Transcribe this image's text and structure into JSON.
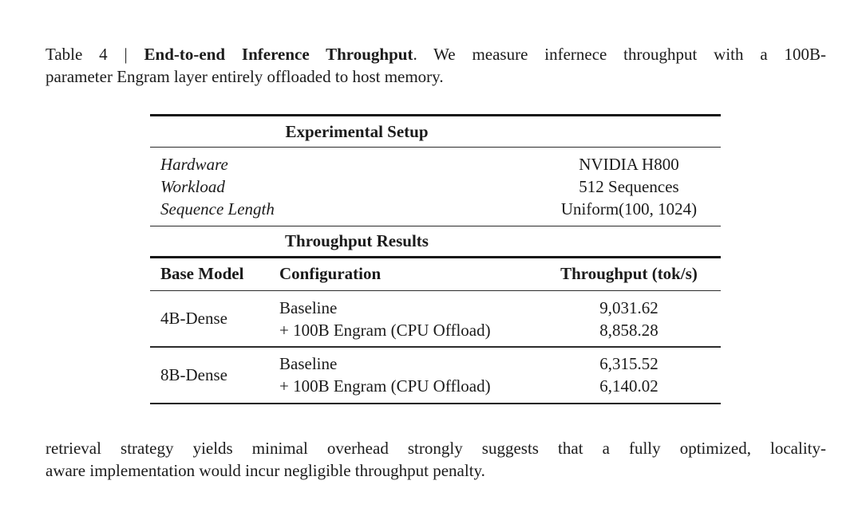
{
  "page": {
    "background": "#ffffff",
    "text_color": "#1b1b1b",
    "rule_color": "#1f1f1f"
  },
  "caption": {
    "label_prefix": "Table 4 | ",
    "bold_title": "End-to-end Inference Throughput",
    "line1_rest": ". We measure infernece throughput with a 100B-",
    "line2": "parameter Engram layer entirely offloaded to host memory."
  },
  "table": {
    "setup_section": {
      "title": "Experimental Setup",
      "rows": [
        {
          "label": "Hardware",
          "value": "NVIDIA H800"
        },
        {
          "label": "Workload",
          "value": "512 Sequences"
        },
        {
          "label": "Sequence Length",
          "value": "Uniform(100, 1024)"
        }
      ]
    },
    "results_section": {
      "title": "Throughput Results",
      "columns": {
        "col1": "Base Model",
        "col2": "Configuration",
        "col3": "Throughput (tok/s)"
      },
      "groups": [
        {
          "base_model": "4B-Dense",
          "rows": [
            {
              "configuration": "Baseline",
              "throughput": "9,031.62"
            },
            {
              "configuration": "+ 100B Engram (CPU Offload)",
              "throughput": "8,858.28"
            }
          ]
        },
        {
          "base_model": "8B-Dense",
          "rows": [
            {
              "configuration": "Baseline",
              "throughput": "6,315.52"
            },
            {
              "configuration": "+ 100B Engram (CPU Offload)",
              "throughput": "6,140.02"
            }
          ]
        }
      ]
    }
  },
  "body_text": {
    "line1": "retrieval strategy yields minimal overhead strongly suggests that a fully optimized, locality-",
    "line2": "aware implementation would incur negligible throughput penalty."
  }
}
